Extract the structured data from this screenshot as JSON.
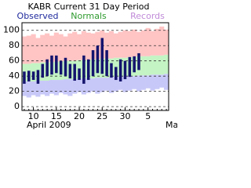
{
  "chart_data": {
    "type": "range-bar",
    "title": "KABR Current 31 Day Period",
    "categories": [
      null,
      null,
      "10",
      null,
      null,
      null,
      null,
      "15",
      null,
      null,
      null,
      null,
      "20",
      null,
      null,
      null,
      null,
      "25",
      null,
      null,
      null,
      null,
      "30",
      null,
      null,
      null,
      null,
      "5",
      null,
      null,
      null,
      null
    ],
    "month_labels": [
      "April 2009",
      "Ma"
    ],
    "series": [
      {
        "name": "Observed",
        "color": "#1f2a9c",
        "fill": "#14146e",
        "values": [
          46,
          47,
          46,
          48,
          56,
          62,
          67,
          67,
          60,
          64,
          56,
          56,
          50,
          67,
          62,
          74,
          80,
          90,
          74,
          57,
          52,
          62,
          60,
          65,
          66,
          70,
          null,
          null,
          null,
          null,
          null,
          null
        ],
        "lows": [
          30,
          33,
          35,
          30,
          38,
          40,
          42,
          44,
          42,
          40,
          37,
          34,
          35,
          30,
          35,
          40,
          44,
          43,
          40,
          38,
          35,
          33,
          36,
          39,
          45,
          48,
          null,
          null,
          null,
          null,
          null,
          null
        ]
      },
      {
        "name": "Normals",
        "color": "#2e9a2e",
        "fill": "#c4f4c4",
        "values": [
          56,
          56,
          57,
          57,
          58,
          58,
          58,
          59,
          59,
          60,
          60,
          60,
          61,
          61,
          61,
          62,
          62,
          63,
          63,
          63,
          64,
          64,
          64,
          65,
          65,
          66,
          66,
          66,
          67,
          67,
          67,
          68
        ],
        "lows": [
          33,
          33,
          33,
          34,
          34,
          34,
          35,
          35,
          35,
          36,
          36,
          36,
          37,
          37,
          37,
          37,
          38,
          38,
          38,
          39,
          39,
          39,
          40,
          40,
          40,
          41,
          41,
          41,
          42,
          42,
          42,
          43
        ]
      },
      {
        "name": "Records",
        "color": "#c08ad8",
        "fills": [
          "#ffc4c4",
          "#c8c8f8"
        ],
        "values": [
          92,
          93,
          95,
          90,
          94,
          96,
          93,
          97,
          95,
          92,
          96,
          98,
          95,
          99,
          97,
          96,
          98,
          100,
          97,
          99,
          96,
          98,
          100,
          99,
          101,
          98,
          100,
          103,
          99,
          102,
          105,
          101
        ],
        "lows": [
          14,
          12,
          15,
          13,
          16,
          14,
          17,
          15,
          18,
          16,
          14,
          17,
          19,
          16,
          18,
          20,
          17,
          19,
          21,
          18,
          20,
          22,
          19,
          21,
          23,
          20,
          22,
          24,
          21,
          23,
          25,
          22
        ]
      }
    ],
    "ylim": [
      -5,
      110
    ],
    "yticks": [
      0,
      20,
      40,
      60,
      80,
      100
    ],
    "grid": true
  }
}
